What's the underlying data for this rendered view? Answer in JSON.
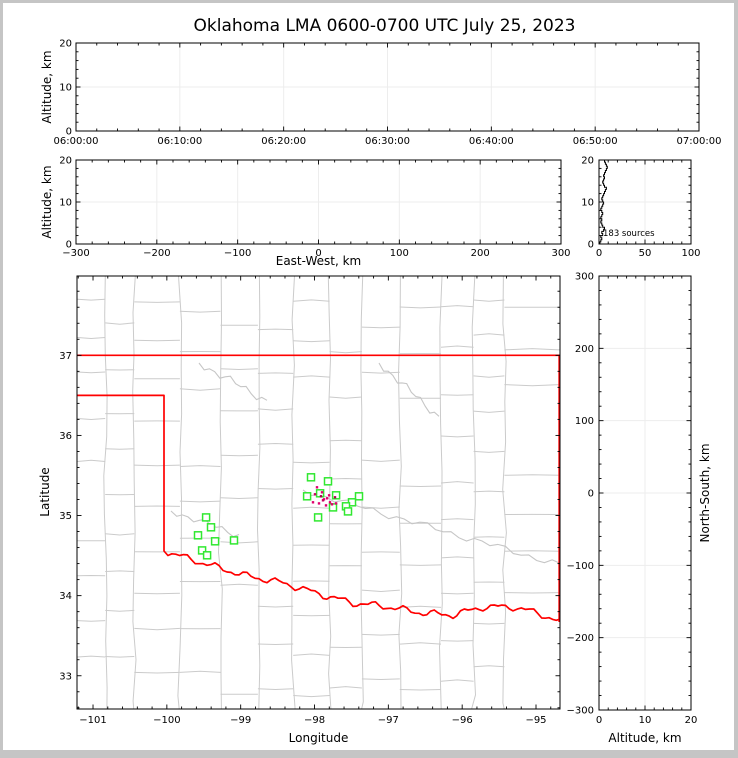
{
  "title": "Oklahoma LMA 0600-0700 UTC July 25, 2023",
  "colors": {
    "state_boundary": "#ff0000",
    "county_line": "#cbcbcb",
    "river_line": "#c6c6c6",
    "gridline": "#ededed",
    "station_green": "#30e830",
    "source_pink": "#e0006e",
    "axis_black": "#000000"
  },
  "panels": {
    "time_height": {
      "ylabel": "Altitude, km",
      "xticks": [
        "06:00:00",
        "06:10:00",
        "06:20:00",
        "06:30:00",
        "06:40:00",
        "06:50:00",
        "07:00:00"
      ],
      "yticks": [
        "0",
        "10",
        "20"
      ]
    },
    "ew_height": {
      "ylabel": "Altitude, km",
      "xlabel": "East-West, km",
      "xticks": [
        "−300",
        "−200",
        "−100",
        "0",
        "100",
        "200",
        "300"
      ],
      "yticks": [
        "0",
        "10",
        "20"
      ]
    },
    "histogram": {
      "annotation": "183 sources",
      "xticks": [
        "0",
        "50",
        "100"
      ],
      "yticks": [
        "0",
        "10",
        "20"
      ]
    },
    "map": {
      "xlabel": "Longitude",
      "ylabel": "Latitude",
      "xticks": [
        "−101",
        "−100",
        "−99",
        "−98",
        "−97",
        "−96",
        "−95"
      ],
      "yticks": [
        "33",
        "34",
        "35",
        "36",
        "37"
      ]
    },
    "ns_height": {
      "xlabel": "Altitude, km",
      "right_label": "North-South, km",
      "xticks": [
        "0",
        "10",
        "20"
      ],
      "yticks": [
        "300",
        "200",
        "100",
        "0",
        "−100",
        "−200",
        "−300"
      ]
    }
  },
  "chart_data": [
    {
      "type": "scatter",
      "panel": "time-altitude",
      "title": "Oklahoma LMA 0600-0700 UTC July 25, 2023",
      "ylabel": "Altitude, km",
      "xlim": [
        "06:00:00",
        "07:00:00"
      ],
      "ylim": [
        0,
        20
      ],
      "xtick_minutes": [
        0,
        10,
        20,
        30,
        40,
        50,
        60
      ],
      "points": []
    },
    {
      "type": "scatter",
      "panel": "eastwest-altitude",
      "xlabel": "East-West, km",
      "ylabel": "Altitude, km",
      "xlim": [
        -300,
        300
      ],
      "ylim": [
        0,
        20
      ],
      "points": []
    },
    {
      "type": "line",
      "panel": "altitude-source-histogram",
      "total_label": "183 sources",
      "total_sources": 183,
      "xlim": [
        0,
        100
      ],
      "ylim": [
        0,
        20
      ],
      "bin_height_km": 0.5,
      "counts_bottom_to_top": [
        1,
        2,
        3,
        2,
        4,
        3,
        5,
        6,
        4,
        3,
        2,
        3,
        2,
        3,
        4,
        3,
        2,
        3,
        4,
        5,
        4,
        3,
        4,
        5,
        6,
        7,
        8,
        6,
        5,
        4,
        5,
        6,
        5,
        6,
        7,
        8,
        9,
        8,
        7,
        6
      ]
    },
    {
      "type": "scatter",
      "panel": "plan-view-map",
      "xlabel": "Longitude",
      "ylabel": "Latitude",
      "xlim": [
        -101.217,
        -94.675
      ],
      "ylim": [
        32.585,
        37.99
      ],
      "stations_lonlat": [
        [
          -98.047,
          35.477
        ],
        [
          -97.817,
          35.427
        ],
        [
          -98.101,
          35.24
        ],
        [
          -97.925,
          35.277
        ],
        [
          -97.708,
          35.252
        ],
        [
          -97.397,
          35.24
        ],
        [
          -97.492,
          35.165
        ],
        [
          -97.573,
          35.115
        ],
        [
          -97.749,
          35.102
        ],
        [
          -97.546,
          35.052
        ],
        [
          -97.952,
          34.977
        ],
        [
          -99.469,
          34.977
        ],
        [
          -99.402,
          34.853
        ],
        [
          -99.578,
          34.753
        ],
        [
          -99.347,
          34.678
        ],
        [
          -99.09,
          34.69
        ],
        [
          -99.523,
          34.565
        ],
        [
          -99.455,
          34.503
        ]
      ],
      "sources_lonlat": [
        {
          "lon": -97.966,
          "lat": 35.352,
          "color": "#e0006e"
        },
        {
          "lon": -97.898,
          "lat": 35.29,
          "color": "#e0006e"
        },
        {
          "lon": -97.993,
          "lat": 35.265,
          "color": "#c70060"
        },
        {
          "lon": -97.871,
          "lat": 35.202,
          "color": "#e0006e"
        },
        {
          "lon": -97.83,
          "lat": 35.215,
          "color": "#e0006e"
        },
        {
          "lon": -97.722,
          "lat": 35.227,
          "color": "#b00050"
        },
        {
          "lon": -97.79,
          "lat": 35.165,
          "color": "#e0006e"
        },
        {
          "lon": -97.763,
          "lat": 35.14,
          "color": "#e0006e"
        },
        {
          "lon": -97.708,
          "lat": 35.152,
          "color": "#e0006e"
        },
        {
          "lon": -97.885,
          "lat": 35.19,
          "color": "#c70060"
        },
        {
          "lon": -97.939,
          "lat": 35.152,
          "color": "#e0006e"
        },
        {
          "lon": -98.02,
          "lat": 35.165,
          "color": "#e0006e"
        },
        {
          "lon": -97.844,
          "lat": 35.127,
          "color": "#e0006e"
        },
        {
          "lon": -97.912,
          "lat": 35.24,
          "color": "#9c0346"
        },
        {
          "lon": -97.803,
          "lat": 35.252,
          "color": "#e0006e"
        }
      ]
    },
    {
      "type": "scatter",
      "panel": "altitude-northsouth",
      "xlabel": "Altitude, km",
      "ylabel": "North-South, km",
      "xlim": [
        0,
        20
      ],
      "ylim": [
        -300,
        300
      ],
      "points": []
    }
  ]
}
